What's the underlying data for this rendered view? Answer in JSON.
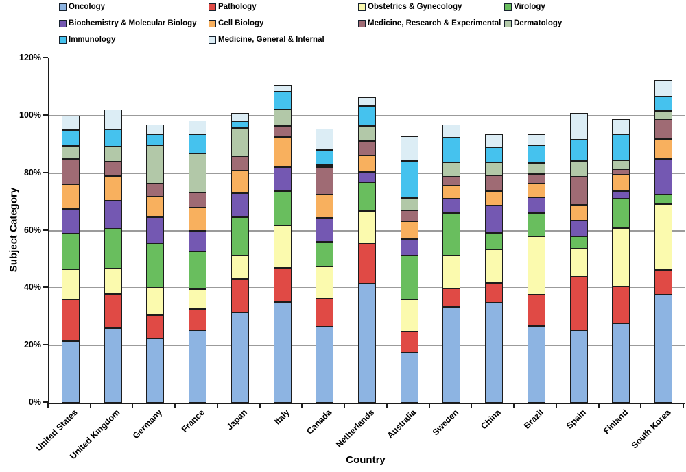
{
  "chart_data": {
    "type": "bar",
    "variant": "stacked-column",
    "title": "",
    "xlabel": "Country",
    "ylabel": "Subject Category",
    "ylim": [
      0,
      120
    ],
    "y_tick_labels": [
      "0%",
      "20%",
      "40%",
      "60%",
      "80%",
      "100%",
      "120%"
    ],
    "grid": true,
    "legend_position": "top",
    "categories": [
      "United States",
      "United Kingdom",
      "Germany",
      "France",
      "Japan",
      "Italy",
      "Canada",
      "Netherlands",
      "Australia",
      "Sweden",
      "China",
      "Brazil",
      "Spain",
      "Finland",
      "South Korea"
    ],
    "series": [
      {
        "name": "Oncology",
        "color": "#8DB4E2",
        "values": [
          21.5,
          26.0,
          22.5,
          25.2,
          31.6,
          35.0,
          26.5,
          41.5,
          17.5,
          33.3,
          34.8,
          26.8,
          25.2,
          27.6,
          37.7
        ]
      },
      {
        "name": "Pathology",
        "color": "#E04A45",
        "values": [
          14.5,
          12.0,
          8.0,
          7.6,
          11.5,
          12.1,
          9.7,
          14.2,
          7.2,
          6.6,
          6.9,
          10.9,
          18.6,
          12.9,
          8.6
        ]
      },
      {
        "name": "Obstetrics & Gynecology",
        "color": "#FBFAAE",
        "values": [
          10.5,
          8.7,
          9.5,
          6.8,
          8.1,
          14.8,
          11.3,
          11.2,
          11.3,
          11.3,
          11.7,
          20.3,
          9.8,
          20.4,
          22.8
        ]
      },
      {
        "name": "Virology",
        "color": "#69BE5E",
        "values": [
          12.5,
          13.8,
          15.5,
          13.1,
          13.5,
          11.8,
          8.6,
          10.0,
          15.3,
          14.9,
          5.8,
          8.1,
          4.4,
          10.2,
          3.4
        ]
      },
      {
        "name": "Biochemistry & Molecular Biology",
        "color": "#7458B2",
        "values": [
          8.5,
          9.8,
          9.2,
          7.2,
          8.4,
          8.4,
          8.2,
          3.6,
          5.8,
          5.0,
          9.4,
          5.4,
          5.4,
          2.6,
          12.5
        ]
      },
      {
        "name": "Cell Biology",
        "color": "#F8B05E",
        "values": [
          8.5,
          8.6,
          7.2,
          8.2,
          7.7,
          10.4,
          8.3,
          5.7,
          6.1,
          4.5,
          5.1,
          4.9,
          5.5,
          5.7,
          6.8
        ]
      },
      {
        "name": "Medicine, Research & Experimental",
        "color": "#9F6B74",
        "values": [
          9.0,
          5.1,
          4.4,
          5.2,
          5.2,
          3.9,
          9.4,
          5.0,
          3.8,
          3.2,
          5.4,
          3.2,
          9.8,
          1.9,
          6.9
        ]
      },
      {
        "name": "Dermatology",
        "color": "#B2C8A8",
        "values": [
          4.5,
          5.2,
          13.4,
          13.6,
          9.6,
          5.6,
          0.8,
          5.2,
          4.3,
          5.0,
          4.6,
          3.8,
          5.5,
          3.1,
          3.0
        ]
      },
      {
        "name": "Immunology",
        "color": "#45C2EE",
        "values": [
          5.5,
          6.0,
          3.9,
          6.7,
          2.4,
          6.4,
          5.3,
          7.0,
          12.8,
          8.6,
          5.2,
          6.2,
          7.4,
          9.1,
          4.9
        ]
      },
      {
        "name": "Medicine, General & Internal",
        "color": "#DCEDF5",
        "values": [
          5.0,
          7.0,
          3.2,
          4.6,
          2.8,
          2.2,
          7.3,
          3.0,
          8.6,
          4.4,
          4.5,
          3.9,
          9.3,
          5.2,
          5.8
        ]
      }
    ]
  }
}
